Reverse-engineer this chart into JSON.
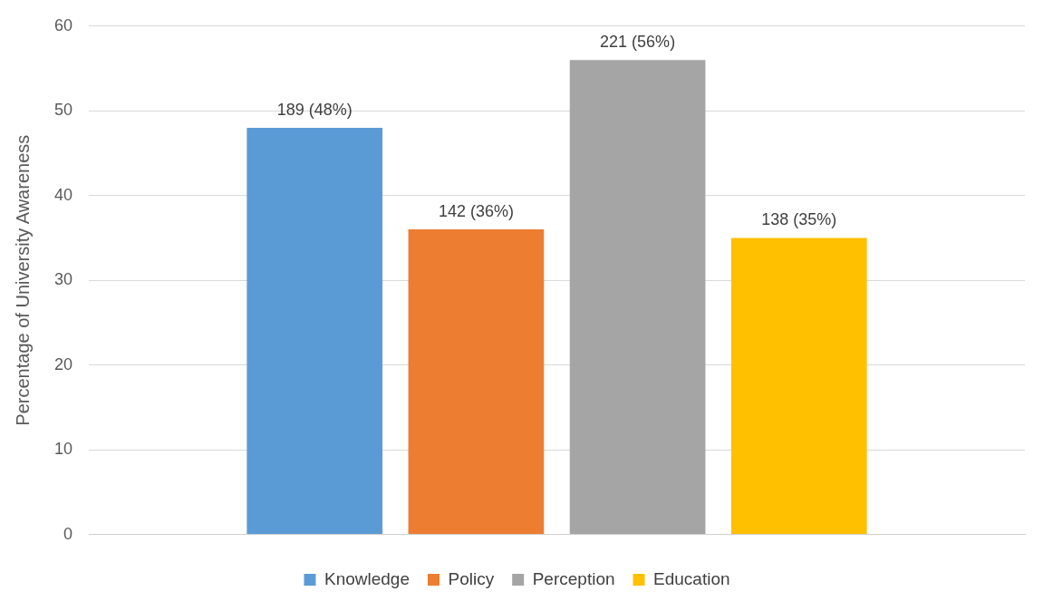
{
  "chart_data": {
    "type": "bar",
    "ylabel": "Percentage of University Awareness",
    "categories": [
      null
    ],
    "series": [
      {
        "name": "Knowledge",
        "color": "#5b9bd5",
        "values": [
          48
        ],
        "value_labels": [
          "189 (48%)"
        ]
      },
      {
        "name": "Policy",
        "color": "#ed7d31",
        "values": [
          36
        ],
        "value_labels": [
          "142 (36%)"
        ]
      },
      {
        "name": "Perception",
        "color": "#a5a5a5",
        "values": [
          56
        ],
        "value_labels": [
          "221 (56%)"
        ]
      },
      {
        "name": "Education",
        "color": "#ffc000",
        "values": [
          35
        ],
        "value_labels": [
          "138 (35%)"
        ]
      }
    ],
    "ylim": [
      0,
      60
    ],
    "yticks": [
      0,
      10,
      20,
      30,
      40,
      50,
      60
    ],
    "grid": "y",
    "legend": "bottom"
  }
}
